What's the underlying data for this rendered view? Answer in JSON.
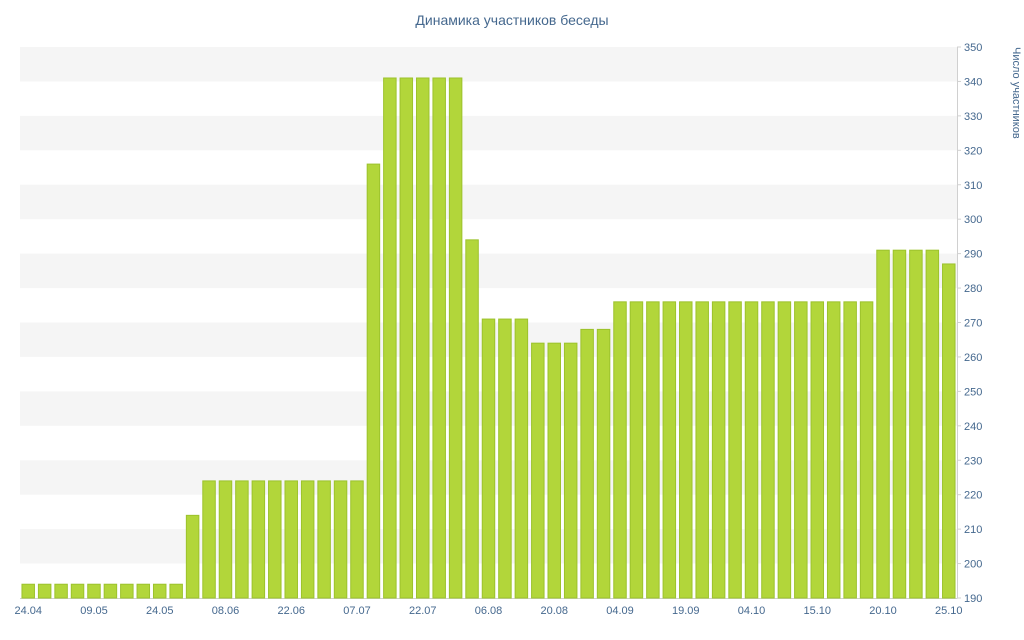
{
  "chart_data": {
    "type": "bar",
    "title": "Динамика участников беседы",
    "ylabel": "Число участников",
    "xlabel": "",
    "ylim": [
      190,
      350
    ],
    "ytick_step": 10,
    "y_axis_side": "right",
    "grid": "striped-horizontal-bands",
    "legend_position": "none",
    "x_tick_every": 4,
    "x_tick_labels": [
      "24.04",
      "09.05",
      "24.05",
      "08.06",
      "22.06",
      "07.07",
      "22.07",
      "06.08",
      "20.08",
      "04.09",
      "19.09",
      "04.10",
      "15.10",
      "20.10",
      "25.10"
    ],
    "values": [
      194,
      194,
      194,
      194,
      194,
      194,
      194,
      194,
      194,
      194,
      214,
      224,
      224,
      224,
      224,
      224,
      224,
      224,
      224,
      224,
      224,
      316,
      341,
      341,
      341,
      341,
      341,
      294,
      271,
      271,
      271,
      264,
      264,
      264,
      268,
      268,
      276,
      276,
      276,
      276,
      276,
      276,
      276,
      276,
      276,
      276,
      276,
      276,
      276,
      276,
      276,
      276,
      291,
      291,
      291,
      291,
      287
    ],
    "colors": {
      "bar_fill": "#b2d63a",
      "bar_border": "#9cc22c",
      "stripe": "#f5f5f5",
      "axis_line": "#d0d0d0",
      "label_text": "#45688e",
      "background": "#ffffff"
    }
  }
}
